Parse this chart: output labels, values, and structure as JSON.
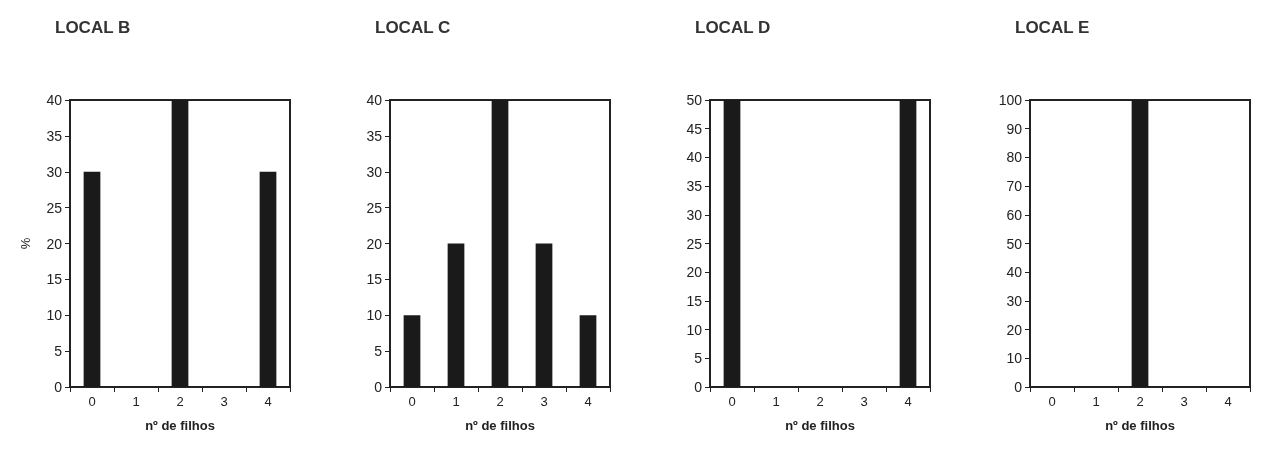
{
  "chart_data": [
    {
      "type": "bar",
      "title": "LOCAL B",
      "xlabel": "nº de filhos",
      "ylabel": "%",
      "categories": [
        "0",
        "1",
        "2",
        "3",
        "4"
      ],
      "values": [
        30,
        0,
        40,
        0,
        30
      ],
      "color": "#1a1a1a",
      "ylim": [
        0,
        40
      ],
      "yticks": [
        0,
        5,
        10,
        15,
        20,
        25,
        30,
        35,
        40
      ]
    },
    {
      "type": "bar",
      "title": "LOCAL C",
      "xlabel": "nº de filhos",
      "categories": [
        "0",
        "1",
        "2",
        "3",
        "4"
      ],
      "values": [
        10,
        20,
        40,
        20,
        10
      ],
      "color": "#1a1a1a",
      "ylim": [
        0,
        40
      ],
      "yticks": [
        0,
        5,
        10,
        15,
        20,
        25,
        30,
        35,
        40
      ]
    },
    {
      "type": "bar",
      "title": "LOCAL D",
      "xlabel": "nº de filhos",
      "categories": [
        "0",
        "1",
        "2",
        "3",
        "4"
      ],
      "values": [
        50,
        0,
        0,
        0,
        50
      ],
      "color": "#1a1a1a",
      "ylim": [
        0,
        50
      ],
      "yticks": [
        0,
        5,
        10,
        15,
        20,
        25,
        30,
        35,
        40,
        45,
        50
      ]
    },
    {
      "type": "bar",
      "title": "LOCAL E",
      "xlabel": "nº de filhos",
      "categories": [
        "0",
        "1",
        "2",
        "3",
        "4"
      ],
      "values": [
        0,
        0,
        100,
        0,
        0
      ],
      "color": "#1a1a1a",
      "ylim": [
        0,
        100
      ],
      "yticks": [
        0,
        10,
        20,
        30,
        40,
        50,
        60,
        70,
        80,
        90,
        100
      ]
    }
  ]
}
